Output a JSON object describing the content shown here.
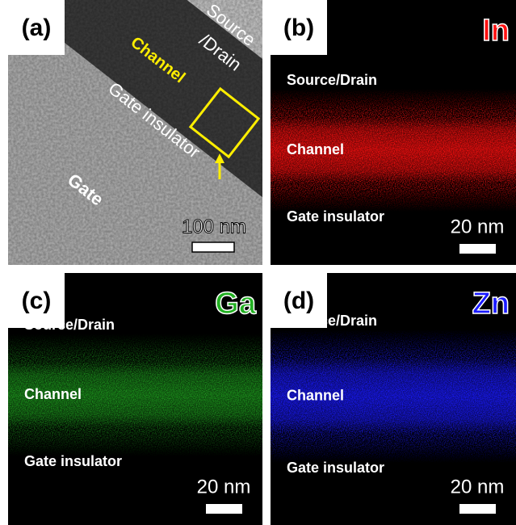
{
  "panels": [
    {
      "label": "(a)",
      "channel": "Channel",
      "source_drain": [
        "Source",
        "/Drain"
      ],
      "gate_insulator": "Gate insulator",
      "gate": "Gate",
      "scale": "100 nm"
    },
    {
      "label": "(b)",
      "element": "In",
      "layers": [
        "Source/Drain",
        "Channel",
        "Gate insulator"
      ],
      "scale": "20 nm"
    },
    {
      "label": "(c)",
      "element": "Ga",
      "layers": [
        "Source/Drain",
        "Channel",
        "Gate insulator"
      ],
      "scale": "20 nm"
    },
    {
      "label": "(d)",
      "element": "Zn",
      "layers": [
        "Source/Drain",
        "Channel",
        "Gate insulator"
      ],
      "scale": "20 nm"
    }
  ]
}
